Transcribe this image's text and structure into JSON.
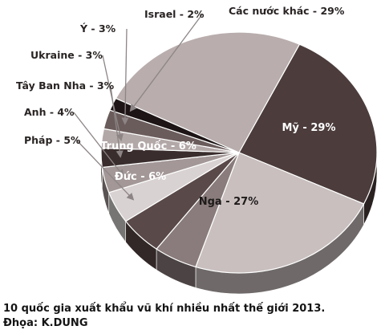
{
  "chart_data": {
    "type": "pie",
    "title": "",
    "slices": [
      {
        "label": "Mỹ - 29%",
        "value": 29,
        "color": "#4c3c3c"
      },
      {
        "label": "Nga - 27%",
        "value": 27,
        "color": "#c9bfbf"
      },
      {
        "label": "Đức - 6%",
        "value": 6,
        "color": "#8a7c7c"
      },
      {
        "label": "Trung Quốc - 6%",
        "value": 6,
        "color": "#5a4949"
      },
      {
        "label": "Pháp - 5%",
        "value": 5,
        "color": "#d9d2d2"
      },
      {
        "label": "Anh - 4%",
        "value": 4,
        "color": "#a39797"
      },
      {
        "label": "Tây Ban Nha - 3%",
        "value": 3,
        "color": "#3a2d2d"
      },
      {
        "label": "Ukraine - 3%",
        "value": 3,
        "color": "#b3a8a8"
      },
      {
        "label": "Ý - 3%",
        "value": 3,
        "color": "#6b5c5c"
      },
      {
        "label": "Israel - 2%",
        "value": 2,
        "color": "#1e1616"
      },
      {
        "label": "Các nước khác - 29%",
        "value": 29,
        "color": "#b9adad"
      }
    ]
  },
  "caption": {
    "line1": "10 quốc gia xuất khẩu vũ khí nhiều nhất thế giới 2013.",
    "line2": "Đhọa: K.DUNG"
  }
}
